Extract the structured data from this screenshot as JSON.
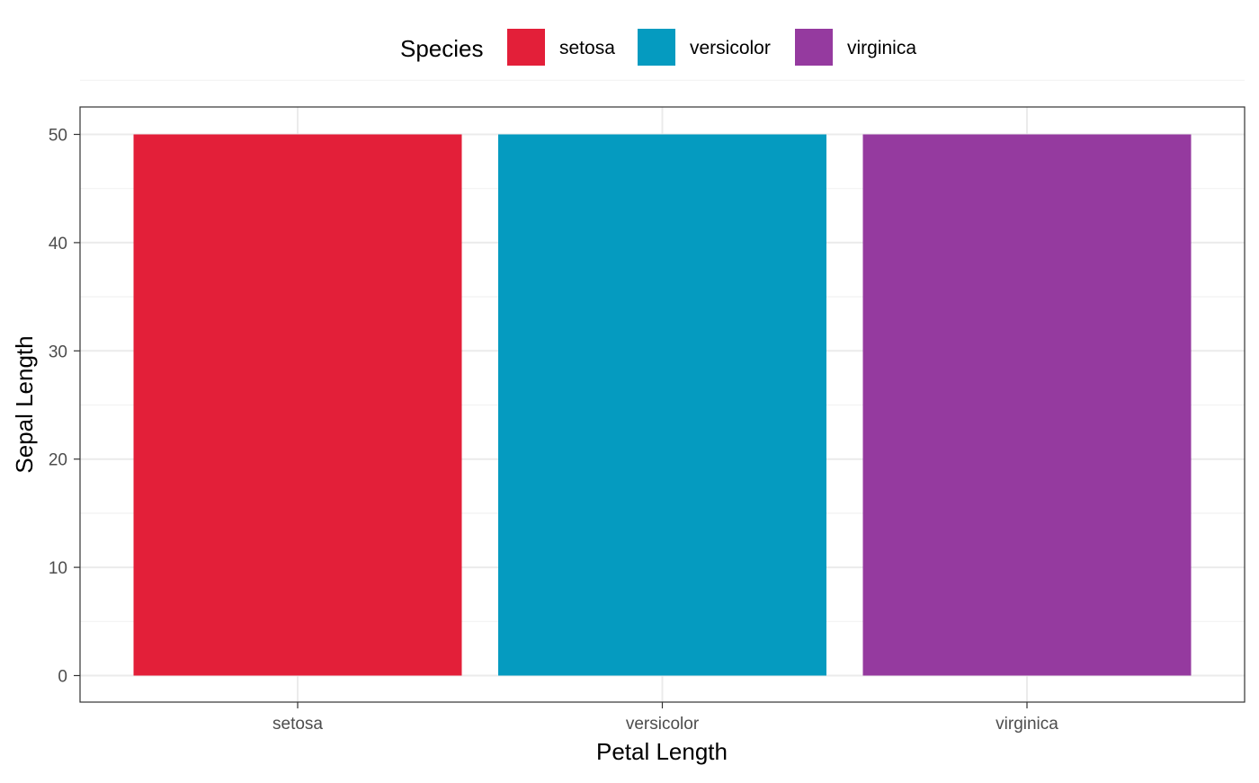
{
  "chart_data": {
    "type": "bar",
    "categories": [
      "setosa",
      "versicolor",
      "virginica"
    ],
    "values": [
      50,
      50,
      50
    ],
    "colors": [
      "#E31F39",
      "#059BC0",
      "#953A9F"
    ],
    "xlabel": "Petal Length",
    "ylabel": "Sepal Length",
    "ylim": [
      0,
      50
    ],
    "yticks": [
      0,
      10,
      20,
      30,
      40,
      50
    ],
    "grid": true,
    "legend": {
      "title": "Species",
      "position": "top",
      "items": [
        {
          "label": "setosa",
          "color": "#E31F39"
        },
        {
          "label": "versicolor",
          "color": "#059BC0"
        },
        {
          "label": "virginica",
          "color": "#953A9F"
        }
      ]
    }
  }
}
